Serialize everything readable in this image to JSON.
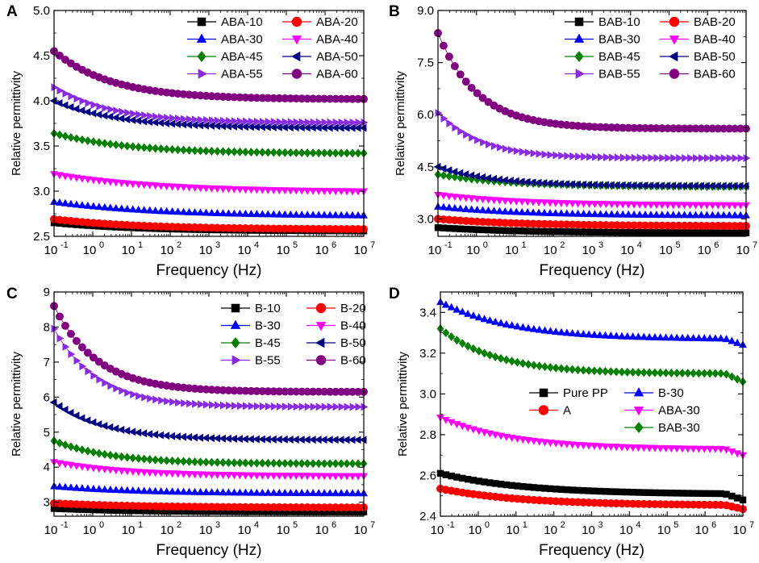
{
  "chart_data": [
    {
      "panel": "A",
      "type": "scatter",
      "xscale": "log",
      "xlabel": "Frequency (Hz)",
      "ylabel": "Relative permittivity",
      "xlim": [
        0.1,
        10000000
      ],
      "ylim": [
        2.5,
        5.0
      ],
      "x_tick_exponents": [
        "-1",
        "0",
        "1",
        "2",
        "3",
        "4",
        "5",
        "6",
        "7"
      ],
      "y_ticks": [
        "2.5",
        "3.0",
        "3.5",
        "4.0",
        "4.5",
        "5.0"
      ],
      "legend_columns": 2,
      "legend_position": "top-right",
      "series": [
        {
          "name": "ABA-10",
          "color": "#000000",
          "marker": "square",
          "start": 2.65,
          "end": 2.56,
          "curve": 1.2
        },
        {
          "name": "ABA-20",
          "color": "#ff0000",
          "marker": "circle",
          "start": 2.69,
          "end": 2.58,
          "curve": 1.2
        },
        {
          "name": "ABA-30",
          "color": "#0000ff",
          "marker": "triangle-up",
          "start": 2.88,
          "end": 2.73,
          "curve": 1.0
        },
        {
          "name": "ABA-40",
          "color": "#ff00ff",
          "marker": "triangle-down",
          "start": 3.19,
          "end": 3.0,
          "curve": 1.0
        },
        {
          "name": "ABA-45",
          "color": "#008000",
          "marker": "diamond",
          "start": 3.64,
          "end": 3.42,
          "curve": 1.4
        },
        {
          "name": "ABA-50",
          "color": "#000080",
          "marker": "triangle-left",
          "start": 4.0,
          "end": 3.7,
          "curve": 1.6
        },
        {
          "name": "ABA-55",
          "color": "#8a2be2",
          "marker": "triangle-right",
          "start": 4.15,
          "end": 3.76,
          "curve": 1.8
        },
        {
          "name": "ABA-60",
          "color": "#800080",
          "marker": "circle",
          "start": 4.55,
          "end": 4.02,
          "curve": 1.8
        }
      ]
    },
    {
      "panel": "B",
      "type": "scatter",
      "xscale": "log",
      "xlabel": "Frequency (Hz)",
      "ylabel": "Relative permittivity",
      "xlim": [
        0.1,
        10000000
      ],
      "ylim": [
        2.5,
        9.0
      ],
      "x_tick_exponents": [
        "-1",
        "0",
        "1",
        "2",
        "3",
        "4",
        "5",
        "6",
        "7"
      ],
      "y_ticks": [
        "3.0",
        "4.5",
        "6.0",
        "7.5",
        "9.0"
      ],
      "legend_columns": 2,
      "legend_position": "top-right",
      "series": [
        {
          "name": "BAB-10",
          "color": "#000000",
          "marker": "square",
          "start": 2.75,
          "end": 2.6,
          "curve": 1.2
        },
        {
          "name": "BAB-20",
          "color": "#ff0000",
          "marker": "circle",
          "start": 3.0,
          "end": 2.8,
          "curve": 1.2
        },
        {
          "name": "BAB-30",
          "color": "#0000ff",
          "marker": "triangle-up",
          "start": 3.35,
          "end": 3.1,
          "curve": 1.2
        },
        {
          "name": "BAB-40",
          "color": "#ff00ff",
          "marker": "triangle-down",
          "start": 3.7,
          "end": 3.4,
          "curve": 1.2
        },
        {
          "name": "BAB-45",
          "color": "#008000",
          "marker": "diamond",
          "start": 4.28,
          "end": 3.93,
          "curve": 1.4
        },
        {
          "name": "BAB-50",
          "color": "#000080",
          "marker": "triangle-left",
          "start": 4.5,
          "end": 3.95,
          "curve": 1.8
        },
        {
          "name": "BAB-55",
          "color": "#8a2be2",
          "marker": "triangle-right",
          "start": 6.05,
          "end": 4.75,
          "curve": 2.4
        },
        {
          "name": "BAB-60",
          "color": "#800080",
          "marker": "circle",
          "start": 8.35,
          "end": 5.6,
          "curve": 2.6
        }
      ]
    },
    {
      "panel": "C",
      "type": "scatter",
      "xscale": "log",
      "xlabel": "Frequency (Hz)",
      "ylabel": "Relative permittivity",
      "xlim": [
        0.1,
        10000000
      ],
      "ylim": [
        2.6,
        9.0
      ],
      "x_tick_exponents": [
        "-1",
        "0",
        "1",
        "2",
        "3",
        "4",
        "5",
        "6",
        "7"
      ],
      "y_ticks": [
        "3",
        "4",
        "5",
        "6",
        "7",
        "8",
        "9"
      ],
      "legend_columns": 2,
      "legend_position": "top-right",
      "series": [
        {
          "name": "B-10",
          "color": "#000000",
          "marker": "square",
          "start": 2.82,
          "end": 2.72,
          "curve": 1.2
        },
        {
          "name": "B-20",
          "color": "#ff0000",
          "marker": "circle",
          "start": 2.97,
          "end": 2.85,
          "curve": 1.2
        },
        {
          "name": "B-30",
          "color": "#0000ff",
          "marker": "triangle-up",
          "start": 3.45,
          "end": 3.25,
          "curve": 1.2
        },
        {
          "name": "B-40",
          "color": "#ff00ff",
          "marker": "triangle-down",
          "start": 4.15,
          "end": 3.75,
          "curve": 1.4
        },
        {
          "name": "B-45",
          "color": "#008000",
          "marker": "diamond",
          "start": 4.75,
          "end": 4.1,
          "curve": 1.8
        },
        {
          "name": "B-50",
          "color": "#000080",
          "marker": "triangle-left",
          "start": 5.85,
          "end": 4.78,
          "curve": 2.0
        },
        {
          "name": "B-55",
          "color": "#8a2be2",
          "marker": "triangle-right",
          "start": 7.95,
          "end": 5.72,
          "curve": 2.4
        },
        {
          "name": "B-60",
          "color": "#800080",
          "marker": "circle",
          "start": 8.6,
          "end": 6.15,
          "curve": 2.4
        }
      ]
    },
    {
      "panel": "D",
      "type": "scatter",
      "xscale": "log",
      "xlabel": "Frequency (Hz)",
      "ylabel": "Relative permittivity",
      "xlim": [
        0.1,
        10000000
      ],
      "ylim": [
        2.4,
        3.5
      ],
      "x_tick_exponents": [
        "-1",
        "0",
        "1",
        "2",
        "3",
        "4",
        "5",
        "6",
        "7"
      ],
      "y_ticks": [
        "2.4",
        "2.6",
        "2.8",
        "3.0",
        "3.2",
        "3.4"
      ],
      "legend_columns": 2,
      "legend_position": "center",
      "series": [
        {
          "name": "Pure PP",
          "color": "#000000",
          "marker": "square",
          "start": 2.61,
          "end": 2.51,
          "curve": 1.2,
          "tail": -0.03
        },
        {
          "name": "A",
          "color": "#ff0000",
          "marker": "circle",
          "start": 2.535,
          "end": 2.455,
          "curve": 1.2,
          "tail": -0.02
        },
        {
          "name": "B-30",
          "color": "#0000ff",
          "marker": "triangle-up",
          "start": 3.45,
          "end": 3.27,
          "curve": 1.4,
          "tail": -0.03
        },
        {
          "name": "ABA-30",
          "color": "#ff00ff",
          "marker": "triangle-down",
          "start": 2.885,
          "end": 2.73,
          "curve": 1.4,
          "tail": -0.03
        },
        {
          "name": "BAB-30",
          "color": "#008000",
          "marker": "diamond",
          "start": 3.32,
          "end": 3.1,
          "curve": 1.8,
          "tail": -0.04
        }
      ]
    }
  ]
}
